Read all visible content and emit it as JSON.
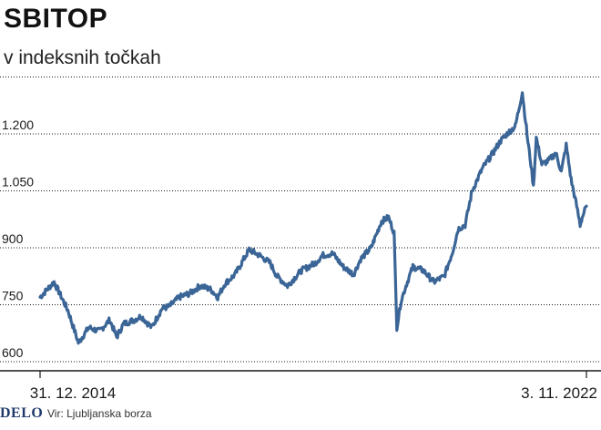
{
  "header": {
    "title": "SBITOP",
    "subtitle": "v indeksnih točkah"
  },
  "footer": {
    "logo": "DELO",
    "source": "Vir: Ljubljanska borza"
  },
  "colors": {
    "line": "#3a6596",
    "grid": "#1a1a1a",
    "text": "#1a1a1a"
  },
  "chart_data": {
    "type": "line",
    "title": "SBITOP",
    "subtitle": "v indeksnih točkah",
    "ylim": [
      600,
      1350
    ],
    "yticks": [
      600,
      750,
      900,
      1050,
      1200
    ],
    "ytick_labels": [
      "600",
      "750",
      "900",
      "1.050",
      "1.200"
    ],
    "xtick_labels": [
      "31. 12. 2014",
      "3. 11. 2022"
    ],
    "grid": "horizontal",
    "series": [
      {
        "name": "",
        "x": [
          2015.0,
          2015.1,
          2015.2,
          2015.28,
          2015.4,
          2015.55,
          2015.7,
          2015.85,
          2016.0,
          2016.1,
          2016.2,
          2016.35,
          2016.45,
          2016.6,
          2016.75,
          2016.85,
          2017.0,
          2017.15,
          2017.3,
          2017.45,
          2017.55,
          2017.65,
          2017.8,
          2018.0,
          2018.15,
          2018.3,
          2018.4,
          2018.55,
          2018.75,
          2018.95,
          2019.05,
          2019.2,
          2019.35,
          2019.5,
          2019.6,
          2019.75,
          2019.9,
          2020.0,
          2020.08,
          2020.12,
          2020.18,
          2020.25,
          2020.35,
          2020.5,
          2020.65,
          2020.8,
          2020.92,
          2021.0,
          2021.1,
          2021.2,
          2021.35,
          2021.5,
          2021.6,
          2021.7,
          2021.82,
          2021.92,
          2022.0,
          2022.03,
          2022.08,
          2022.12,
          2022.2,
          2022.3,
          2022.4,
          2022.48,
          2022.55,
          2022.62,
          2022.7,
          2022.75,
          2022.78,
          2022.84
        ],
        "values": [
          770,
          790,
          810,
          780,
          735,
          650,
          690,
          680,
          710,
          665,
          700,
          710,
          720,
          690,
          740,
          745,
          770,
          780,
          800,
          790,
          770,
          805,
          830,
          895,
          880,
          860,
          825,
          800,
          840,
          860,
          880,
          885,
          850,
          830,
          870,
          900,
          970,
          980,
          940,
          690,
          760,
          800,
          850,
          840,
          810,
          825,
          890,
          950,
          960,
          1050,
          1110,
          1150,
          1180,
          1200,
          1220,
          1310,
          1180,
          1140,
          1060,
          1190,
          1120,
          1130,
          1150,
          1100,
          1170,
          1080,
          1010,
          960,
          980,
          1010
        ]
      }
    ]
  }
}
